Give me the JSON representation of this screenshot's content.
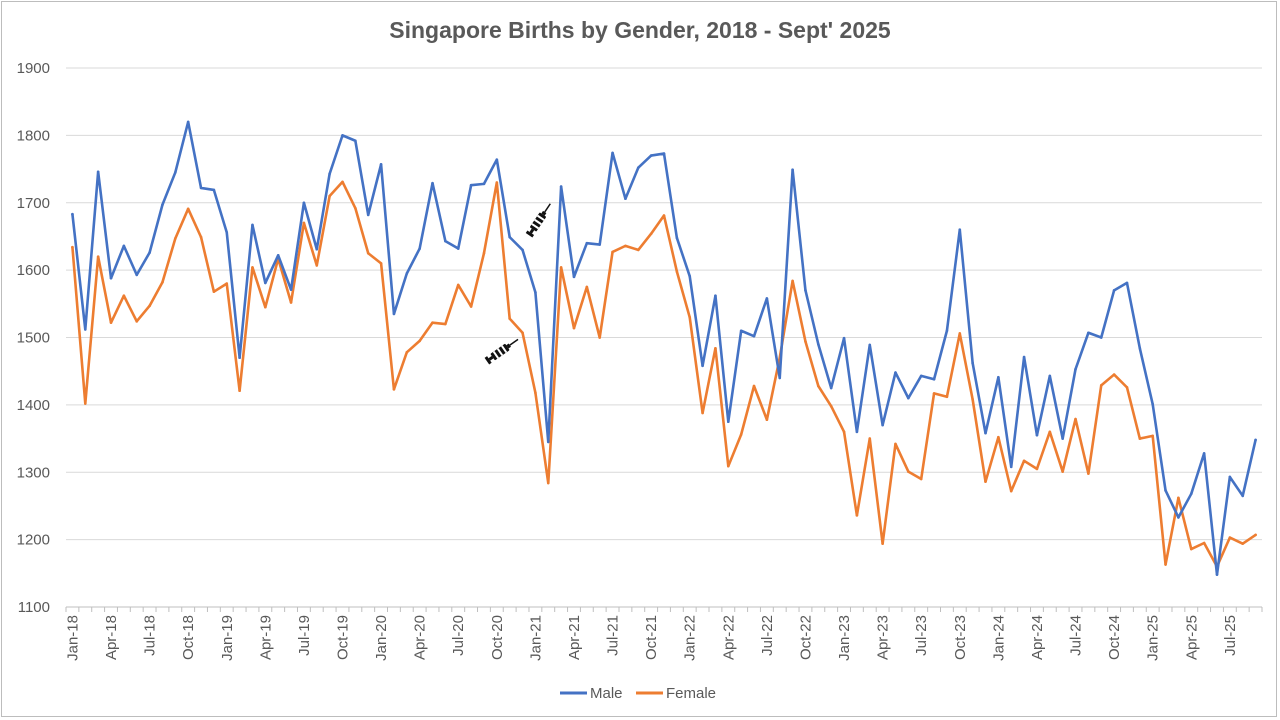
{
  "chart_data": {
    "type": "line",
    "title": "Singapore Births by Gender, 2018 - Sept' 2025",
    "xlabel": "",
    "ylabel": "",
    "ylim": [
      1100,
      1900
    ],
    "yticks": [
      1100,
      1200,
      1300,
      1400,
      1500,
      1600,
      1700,
      1800,
      1900
    ],
    "grid": true,
    "legend_position": "bottom",
    "x": [
      "Jan-18",
      "Feb-18",
      "Mar-18",
      "Apr-18",
      "May-18",
      "Jun-18",
      "Jul-18",
      "Aug-18",
      "Sep-18",
      "Oct-18",
      "Nov-18",
      "Dec-18",
      "Jan-19",
      "Feb-19",
      "Mar-19",
      "Apr-19",
      "May-19",
      "Jun-19",
      "Jul-19",
      "Aug-19",
      "Sep-19",
      "Oct-19",
      "Nov-19",
      "Dec-19",
      "Jan-20",
      "Feb-20",
      "Mar-20",
      "Apr-20",
      "May-20",
      "Jun-20",
      "Jul-20",
      "Aug-20",
      "Sep-20",
      "Oct-20",
      "Nov-20",
      "Dec-20",
      "Jan-21",
      "Feb-21",
      "Mar-21",
      "Apr-21",
      "May-21",
      "Jun-21",
      "Jul-21",
      "Aug-21",
      "Sep-21",
      "Oct-21",
      "Nov-21",
      "Dec-21",
      "Jan-22",
      "Feb-22",
      "Mar-22",
      "Apr-22",
      "May-22",
      "Jun-22",
      "Jul-22",
      "Aug-22",
      "Sep-22",
      "Oct-22",
      "Nov-22",
      "Dec-22",
      "Jan-23",
      "Feb-23",
      "Mar-23",
      "Apr-23",
      "May-23",
      "Jun-23",
      "Jul-23",
      "Aug-23",
      "Sep-23",
      "Oct-23",
      "Nov-23",
      "Dec-23",
      "Jan-24",
      "Feb-24",
      "Mar-24",
      "Apr-24",
      "May-24",
      "Jun-24",
      "Jul-24",
      "Aug-24",
      "Sep-24",
      "Oct-24",
      "Nov-24",
      "Dec-24",
      "Jan-25",
      "Feb-25",
      "Mar-25",
      "Apr-25",
      "May-25",
      "Jun-25",
      "Jul-25",
      "Aug-25",
      "Sep-25"
    ],
    "tick_labels": [
      "Jan-18",
      "Apr-18",
      "Jul-18",
      "Oct-18",
      "Jan-19",
      "Apr-19",
      "Jul-19",
      "Oct-19",
      "Jan-20",
      "Apr-20",
      "Jul-20",
      "Oct-20",
      "Jan-21",
      "Apr-21",
      "Jul-21",
      "Oct-21",
      "Jan-22",
      "Apr-22",
      "Jul-22",
      "Oct-22",
      "Jan-23",
      "Apr-23",
      "Jul-23",
      "Oct-23",
      "Jan-24",
      "Apr-24",
      "Jul-24",
      "Oct-24",
      "Jan-25",
      "Apr-25",
      "Jul-25"
    ],
    "series": [
      {
        "name": "Male",
        "color": "#4472c4",
        "values": [
          1683,
          1512,
          1746,
          1588,
          1636,
          1593,
          1626,
          1697,
          1745,
          1820,
          1722,
          1719,
          1656,
          1470,
          1667,
          1581,
          1622,
          1571,
          1700,
          1631,
          1743,
          1800,
          1792,
          1682,
          1757,
          1535,
          1595,
          1632,
          1729,
          1643,
          1632,
          1726,
          1728,
          1764,
          1649,
          1630,
          1567,
          1345,
          1724,
          1590,
          1640,
          1638,
          1774,
          1706,
          1752,
          1770,
          1773,
          1648,
          1591,
          1458,
          1562,
          1375,
          1510,
          1502,
          1558,
          1440,
          1749,
          1570,
          1490,
          1425,
          1499,
          1360,
          1489,
          1370,
          1448,
          1410,
          1443,
          1438,
          1510,
          1660,
          1462,
          1358,
          1441,
          1308,
          1471,
          1355,
          1443,
          1350,
          1453,
          1507,
          1500,
          1570,
          1581,
          1484,
          1401,
          1273,
          1233,
          1268,
          1328,
          1148,
          1293,
          1265,
          1348
        ]
      },
      {
        "name": "Female",
        "color": "#ed7d31",
        "values": [
          1634,
          1402,
          1620,
          1522,
          1562,
          1524,
          1547,
          1582,
          1647,
          1691,
          1649,
          1568,
          1580,
          1421,
          1604,
          1545,
          1617,
          1552,
          1670,
          1607,
          1710,
          1731,
          1692,
          1625,
          1610,
          1423,
          1478,
          1495,
          1522,
          1520,
          1578,
          1546,
          1625,
          1730,
          1528,
          1507,
          1418,
          1284,
          1604,
          1514,
          1575,
          1500,
          1627,
          1636,
          1630,
          1654,
          1681,
          1598,
          1530,
          1388,
          1484,
          1309,
          1356,
          1428,
          1378,
          1470,
          1584,
          1494,
          1428,
          1398,
          1360,
          1236,
          1350,
          1194,
          1342,
          1301,
          1290,
          1417,
          1412,
          1506,
          1408,
          1286,
          1352,
          1272,
          1317,
          1305,
          1360,
          1301,
          1379,
          1298,
          1429,
          1445,
          1426,
          1350,
          1354,
          1163,
          1262,
          1186,
          1195,
          1160,
          1203,
          1194,
          1207
        ]
      }
    ],
    "annotations": [
      {
        "label": "syringe-icon",
        "near": "Jan-21 male peak"
      },
      {
        "label": "syringe-icon",
        "near": "Dec-20 female"
      }
    ]
  }
}
